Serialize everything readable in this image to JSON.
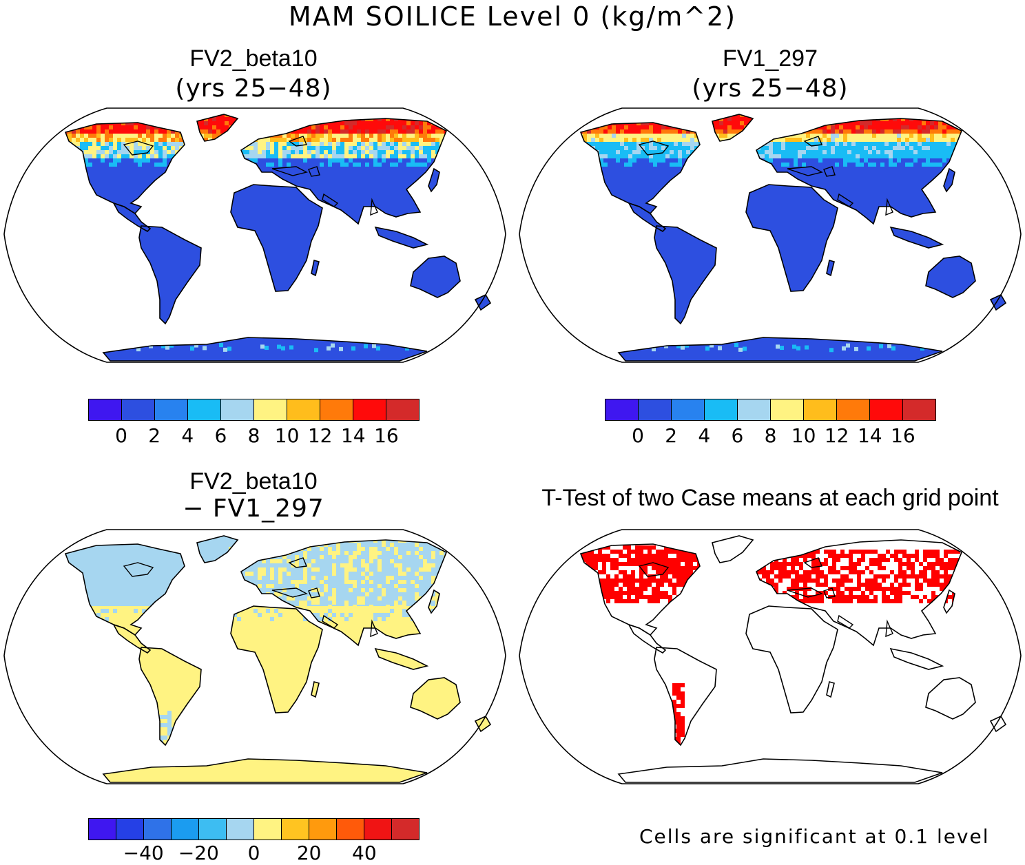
{
  "figure": {
    "title": "MAM SOILICE Level 0 (kg/m^2)"
  },
  "panels": {
    "p1": {
      "title": "FV2_beta10",
      "subtitle": "(yrs 25−48)"
    },
    "p2": {
      "title": "FV1_297",
      "subtitle": "(yrs 25−48)"
    },
    "p3": {
      "title": "FV2_beta10",
      "subtitle": "− FV1_297"
    },
    "p4": {
      "title": "T-Test of two Case means at each grid point",
      "note": "Cells are significant at 0.1 level"
    }
  },
  "colorbars": {
    "abs": {
      "colors": [
        "#3f17f0",
        "#2d4fe0",
        "#2882ef",
        "#19bcf5",
        "#a6d6f0",
        "#fff382",
        "#ffbd1c",
        "#ff7a0a",
        "#ff0a0a",
        "#d42a2a"
      ],
      "labels": [
        "0",
        "2",
        "4",
        "6",
        "8",
        "10",
        "12",
        "14",
        "16"
      ]
    },
    "diff": {
      "colors": [
        "#3f17f0",
        "#2540e6",
        "#2f72e8",
        "#1b9cf0",
        "#3dbdf2",
        "#a6d6f0",
        "#fff382",
        "#ffc421",
        "#ff9a0d",
        "#ff5a0a",
        "#f01414",
        "#d42a2a"
      ],
      "labels": [
        "−40",
        "−20",
        "0",
        "20",
        "40"
      ]
    }
  },
  "maps": {
    "p1_fill": "#2d4fe0",
    "p1_hi_colors": [
      "#ff0a0a",
      "#d42a2a",
      "#ff7a0a",
      "#ffbd1c",
      "#fff382",
      "#a6d6f0",
      "#19bcf5"
    ],
    "p2_fill": "#2d4fe0",
    "p3_fill_low": "#fff382",
    "p3_fill_high": "#a6d6f0",
    "p4_sig": "#ff0000"
  }
}
